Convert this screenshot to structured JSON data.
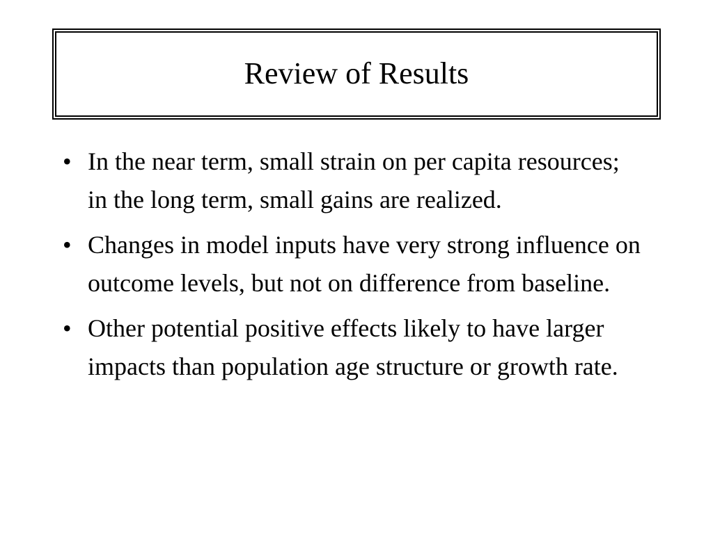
{
  "title": "Review of Results",
  "bullets": [
    "In the near term, small strain on per capita resources; in the long term, small gains are realized.",
    "Changes in model inputs have very strong influence on outcome levels, but not on difference from baseline.",
    "Other potential positive effects likely to have larger impacts than population age structure or growth rate."
  ]
}
